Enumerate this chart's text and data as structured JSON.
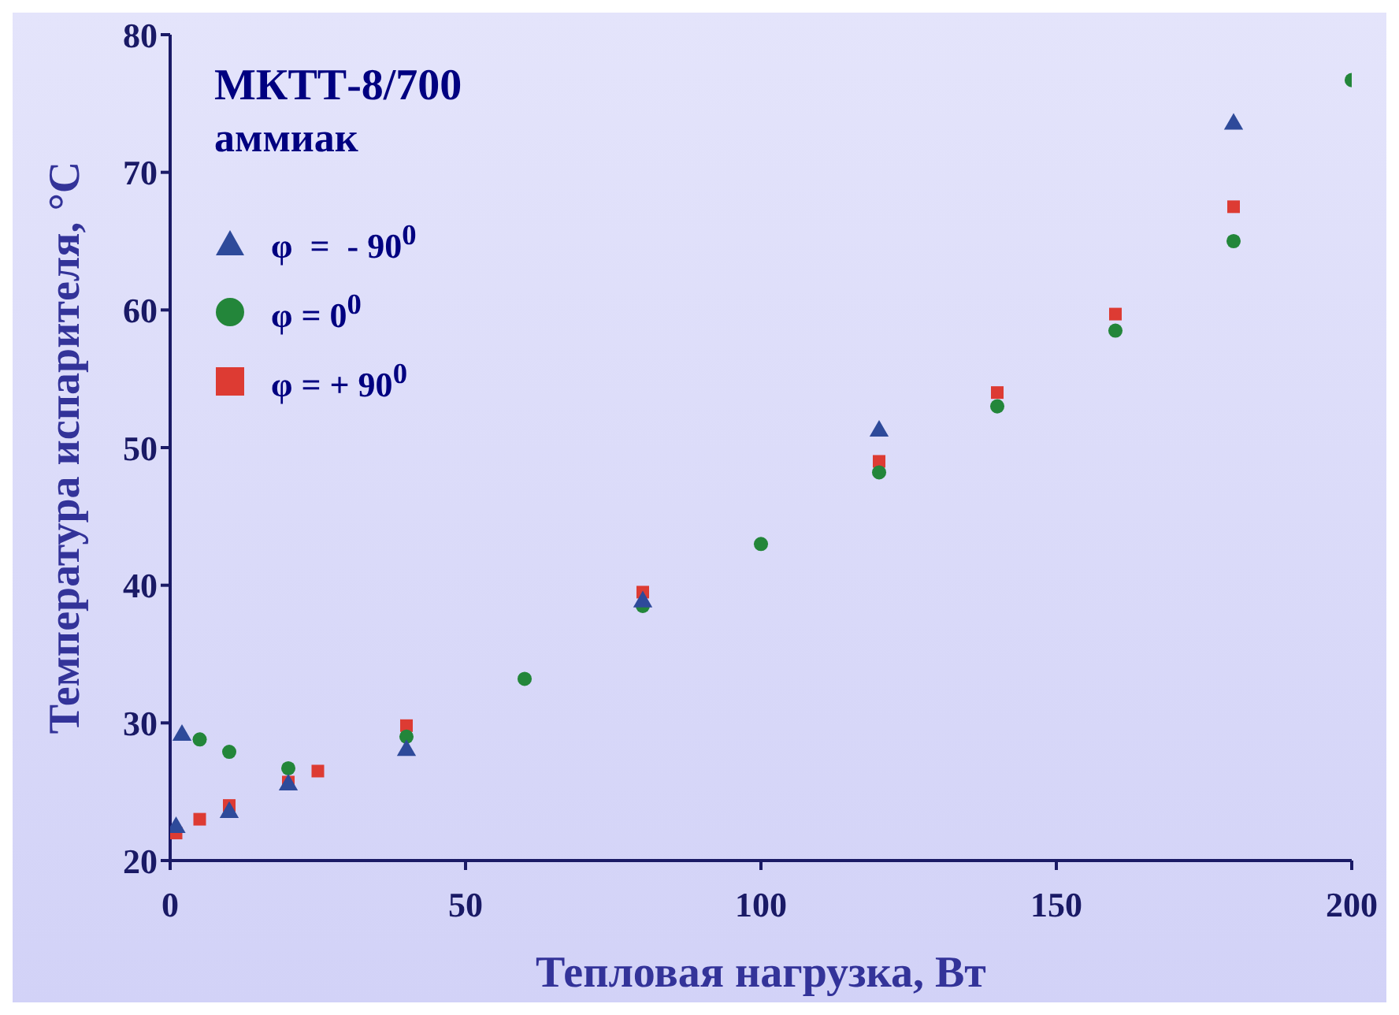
{
  "chart_data": {
    "type": "scatter",
    "title": "МКТТ-8/700",
    "subtitle": "аммиак",
    "xlabel": "Тепловая нагрузка, Вт",
    "ylabel": "Температура испарителя, °С",
    "xlim": [
      0,
      200
    ],
    "xticks": [
      0,
      50,
      100,
      150,
      200
    ],
    "ylim": [
      20,
      80
    ],
    "yticks": [
      20,
      30,
      40,
      50,
      60,
      70,
      80
    ],
    "grid": false,
    "legend": "top left",
    "series": [
      {
        "name": "φ  =  - 90$^{0}$",
        "color": "#2e4a9a",
        "marker": "triangle",
        "x": [
          1,
          2,
          10,
          20,
          40,
          80,
          120,
          180
        ],
        "values": [
          22.4,
          29.1,
          23.5,
          25.5,
          28,
          38.8,
          51.2,
          73.5
        ]
      },
      {
        "name": "φ = 0$^{0}$",
        "color": "#23863a",
        "marker": "circle",
        "x": [
          5,
          10,
          20,
          40,
          60,
          80,
          100,
          120,
          140,
          160,
          180,
          200
        ],
        "values": [
          28.8,
          27.9,
          26.7,
          29,
          33.2,
          38.5,
          43,
          48.2,
          53,
          58.5,
          65,
          76.7
        ]
      },
      {
        "name": "φ = + 90$^{0}$",
        "color": "#dd3b33",
        "marker": "square",
        "x": [
          1,
          5,
          10,
          20,
          25,
          40,
          80,
          120,
          140,
          160,
          180
        ],
        "values": [
          22,
          23,
          24,
          25.7,
          26.5,
          29.8,
          39.5,
          49,
          54,
          59.7,
          67.5
        ]
      }
    ]
  }
}
